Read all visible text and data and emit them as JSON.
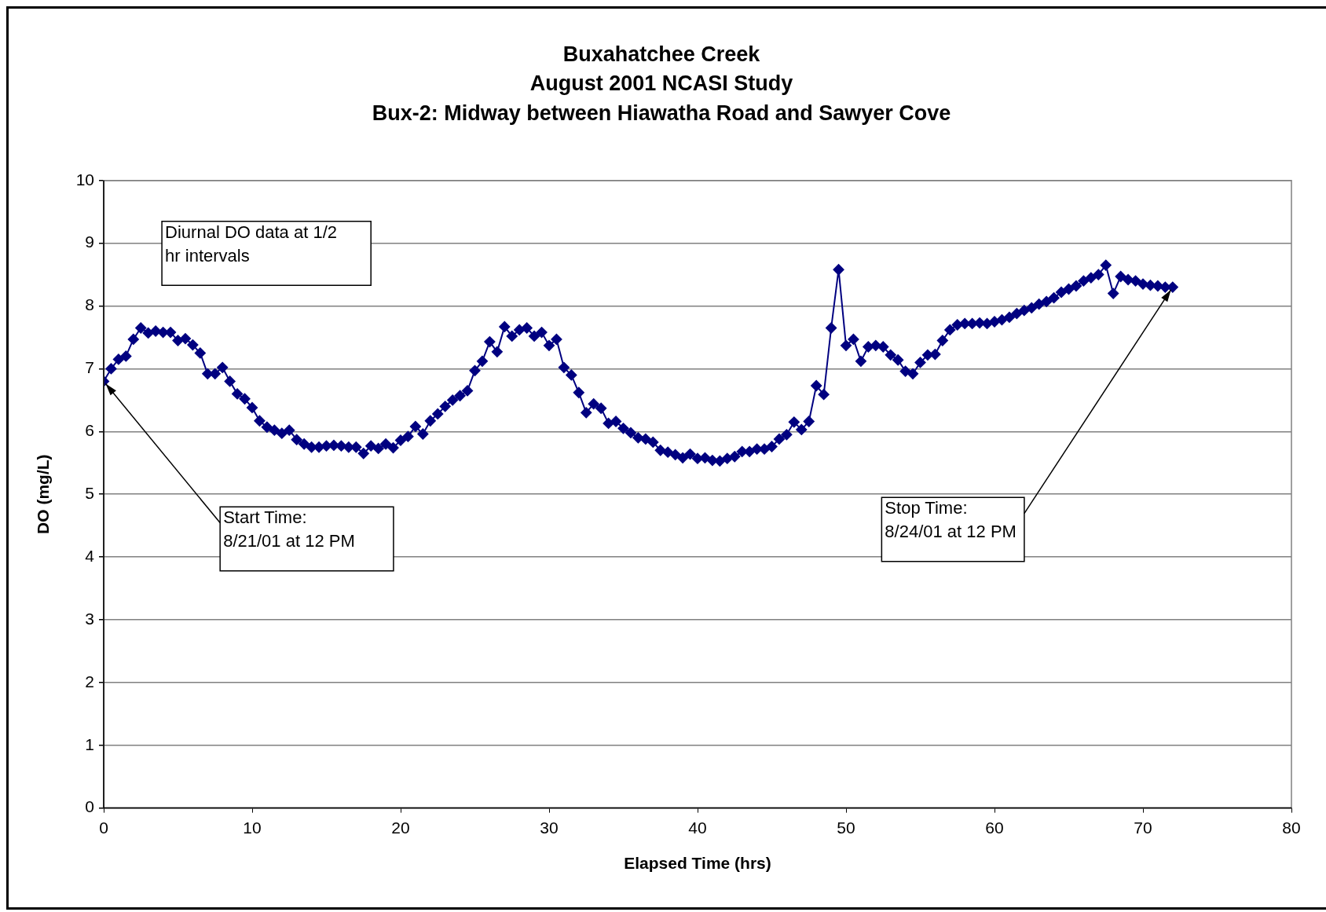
{
  "chart_data": {
    "type": "line",
    "title": "Buxahatchee Creek\nAugust 2001 NCASI Study\nBux-2: Midway between Hiawatha Road and Sawyer Cove",
    "xlabel": "Elapsed Time (hrs)",
    "ylabel": "DO (mg/L)",
    "x": [
      0,
      0.5,
      1,
      1.5,
      2,
      2.5,
      3,
      3.5,
      4,
      4.5,
      5,
      5.5,
      6,
      6.5,
      7,
      7.5,
      8,
      8.5,
      9,
      9.5,
      10,
      10.5,
      11,
      11.5,
      12,
      12.5,
      13,
      13.5,
      14,
      14.5,
      15,
      15.5,
      16,
      16.5,
      17,
      17.5,
      18,
      18.5,
      19,
      19.5,
      20,
      20.5,
      21,
      21.5,
      22,
      22.5,
      23,
      23.5,
      24,
      24.5,
      25,
      25.5,
      26,
      26.5,
      27,
      27.5,
      28,
      28.5,
      29,
      29.5,
      30,
      30.5,
      31,
      31.5,
      32,
      32.5,
      33,
      33.5,
      34,
      34.5,
      35,
      35.5,
      36,
      36.5,
      37,
      37.5,
      38,
      38.5,
      39,
      39.5,
      40,
      40.5,
      41,
      41.5,
      42,
      42.5,
      43,
      43.5,
      44,
      44.5,
      45,
      45.5,
      46,
      46.5,
      47,
      47.5,
      48,
      48.5,
      49,
      49.5,
      50,
      50.5,
      51,
      51.5,
      52,
      52.5,
      53,
      53.5,
      54,
      54.5,
      55,
      55.5,
      56,
      56.5,
      57,
      57.5,
      58,
      58.5,
      59,
      59.5,
      60,
      60.5,
      61,
      61.5,
      62,
      62.5,
      63,
      63.5,
      64,
      64.5,
      65,
      65.5,
      66,
      66.5,
      67,
      67.5,
      68,
      68.5,
      69,
      69.5,
      70,
      70.5,
      71,
      71.5,
      72
    ],
    "series": [
      {
        "color": "#000080",
        "values": [
          6.8,
          7.0,
          7.15,
          7.2,
          7.47,
          7.65,
          7.57,
          7.6,
          7.58,
          7.58,
          7.45,
          7.48,
          7.38,
          7.25,
          6.92,
          6.92,
          7.02,
          6.8,
          6.6,
          6.52,
          6.38,
          6.17,
          6.07,
          6.02,
          5.97,
          6.02,
          5.87,
          5.8,
          5.75,
          5.75,
          5.77,
          5.78,
          5.77,
          5.75,
          5.75,
          5.65,
          5.77,
          5.73,
          5.8,
          5.74,
          5.86,
          5.92,
          6.08,
          5.96,
          6.17,
          6.28,
          6.4,
          6.5,
          6.57,
          6.65,
          6.97,
          7.12,
          7.43,
          7.27,
          7.67,
          7.52,
          7.62,
          7.65,
          7.52,
          7.58,
          7.37,
          7.47,
          7.02,
          6.9,
          6.62,
          6.3,
          6.44,
          6.37,
          6.13,
          6.16,
          6.05,
          5.98,
          5.9,
          5.88,
          5.83,
          5.7,
          5.67,
          5.63,
          5.58,
          5.64,
          5.57,
          5.58,
          5.54,
          5.53,
          5.57,
          5.6,
          5.68,
          5.68,
          5.72,
          5.72,
          5.76,
          5.88,
          5.95,
          6.15,
          6.03,
          6.16,
          6.73,
          6.59,
          7.65,
          8.58,
          7.37,
          7.47,
          7.12,
          7.35,
          7.37,
          7.35,
          7.22,
          7.14,
          6.96,
          6.92,
          7.1,
          7.22,
          7.23,
          7.45,
          7.62,
          7.7,
          7.72,
          7.72,
          7.73,
          7.72,
          7.75,
          7.78,
          7.82,
          7.88,
          7.93,
          7.97,
          8.03,
          8.07,
          8.13,
          8.22,
          8.27,
          8.32,
          8.4,
          8.45,
          8.5,
          8.65,
          8.2,
          8.47,
          8.42,
          8.4,
          8.35,
          8.33,
          8.32,
          8.3,
          8.3
        ]
      }
    ],
    "xlim": [
      0,
      80
    ],
    "xticks": [
      0,
      10,
      20,
      30,
      40,
      50,
      60,
      70,
      80
    ],
    "ylim": [
      0,
      10
    ],
    "yticks": [
      0,
      1,
      2,
      3,
      4,
      5,
      6,
      7,
      8,
      9,
      10
    ],
    "grid": "y",
    "legend": false,
    "marker": "diamond",
    "line_style": "solid",
    "annotations": [
      "Diurnal DO data at 1/2\nhr intervals",
      {
        "text": "Start Time:\n8/21/01 at 12 PM",
        "x": 0,
        "y": 6.8
      },
      {
        "text": "Stop Time:\n8/24/01 at 12 PM",
        "x": 72,
        "y": 8.3
      }
    ]
  }
}
